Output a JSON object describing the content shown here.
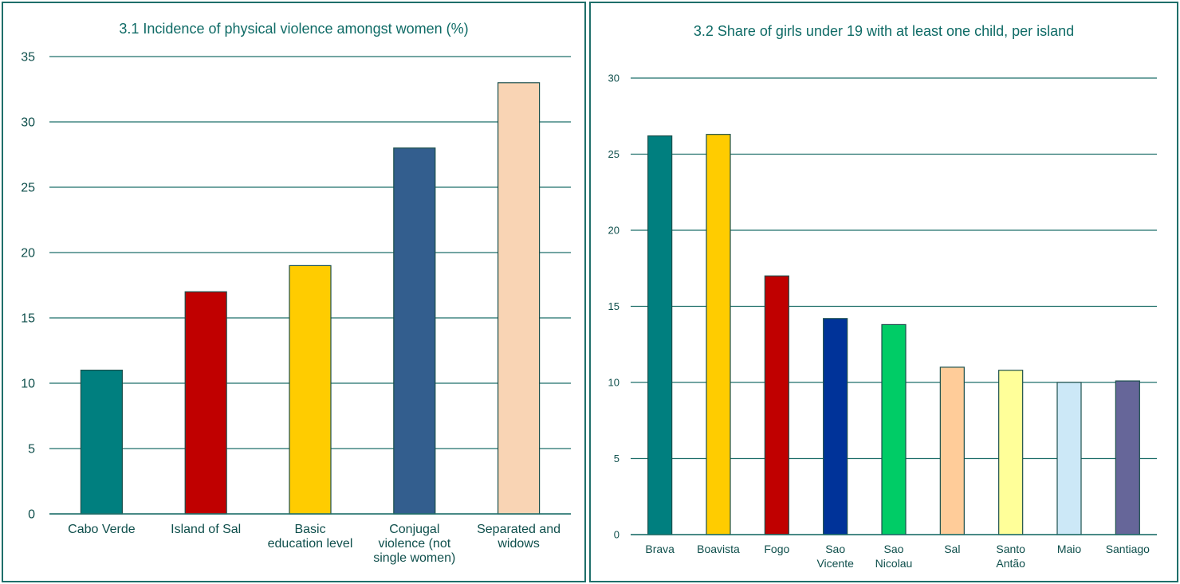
{
  "chart_data": [
    {
      "type": "bar",
      "title": "3.1 Incidence of physical violence amongst women (%)",
      "categories": [
        [
          "Cabo Verde"
        ],
        [
          "Island of Sal"
        ],
        [
          "Basic",
          "education level"
        ],
        [
          "Conjugal",
          "violence (not",
          "single women)"
        ],
        [
          "Separated and",
          "widows"
        ]
      ],
      "values": [
        11,
        17,
        19,
        28,
        33
      ],
      "colors": [
        "#007f7f",
        "#c00000",
        "#ffcc00",
        "#335e8e",
        "#f9d4b4"
      ],
      "ylim": [
        0,
        35
      ],
      "yticks": [
        0,
        5,
        10,
        15,
        20,
        25,
        30,
        35
      ],
      "grid": true,
      "xlabel": "",
      "ylabel": ""
    },
    {
      "type": "bar",
      "title": "3.2 Share of girls under 19 with at least one child, per island",
      "categories": [
        [
          "Brava"
        ],
        [
          "Boavista"
        ],
        [
          "Fogo"
        ],
        [
          "Sao",
          "Vicente"
        ],
        [
          "Sao",
          "Nicolau"
        ],
        [
          "Sal"
        ],
        [
          "Santo",
          "Antão"
        ],
        [
          "Maio"
        ],
        [
          "Santiago"
        ]
      ],
      "values": [
        26.2,
        26.3,
        17.0,
        14.2,
        13.8,
        11.0,
        10.8,
        10.0,
        10.1
      ],
      "colors": [
        "#007f7f",
        "#ffcc00",
        "#c00000",
        "#003399",
        "#00cc66",
        "#ffcc99",
        "#ffff99",
        "#cce8f7",
        "#666699"
      ],
      "ylim": [
        0,
        30
      ],
      "yticks": [
        0,
        5,
        10,
        15,
        20,
        25,
        30
      ],
      "grid": true,
      "xlabel": "",
      "ylabel": ""
    }
  ]
}
